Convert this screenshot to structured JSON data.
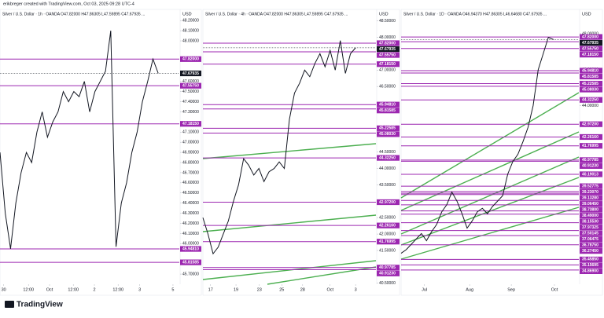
{
  "header": "erikbreger created with TradingView.com, Oct 03, 2025 09:28 UTC-4",
  "footer": "TradingView",
  "chart_data": [
    {
      "type": "line",
      "title": "Silver / U.S. Dollar · 1h · OANDA  O47.82000  H47.86305  L47.59895  C47.67935 ...",
      "currency": "USD",
      "values": [
        46.9,
        46.3,
        45.95,
        46.4,
        46.7,
        46.9,
        46.8,
        47.1,
        47.3,
        47.05,
        47.2,
        47.3,
        47.5,
        47.4,
        47.5,
        47.45,
        47.6,
        47.3,
        47.5,
        47.6,
        47.7,
        48.1,
        45.97,
        46.4,
        46.6,
        46.9,
        47.1,
        47.4,
        47.6,
        47.82,
        47.68
      ],
      "xlim": [
        0,
        34
      ],
      "xticks": [
        {
          "value": 0.7,
          "label": "30"
        },
        {
          "value": 5.4,
          "label": "12:00"
        },
        {
          "value": 9.4,
          "label": "Oct"
        },
        {
          "value": 13.9,
          "label": "12:00"
        },
        {
          "value": 17.9,
          "label": "2"
        },
        {
          "value": 22.4,
          "label": "12:00"
        },
        {
          "value": 26.5,
          "label": "3"
        },
        {
          "value": 32.8,
          "label": "5"
        }
      ],
      "ylim": [
        45.6,
        48.31
      ],
      "yticks": [
        {
          "value": 48.2,
          "label": "48.20000"
        },
        {
          "value": 48.1,
          "label": "48.10000"
        },
        {
          "value": 48.0,
          "label": "48.00000"
        },
        {
          "value": 47.6,
          "label": "47.60000"
        },
        {
          "value": 47.5,
          "label": "47.50000"
        },
        {
          "value": 47.4,
          "label": "47.40000"
        },
        {
          "value": 47.3,
          "label": "47.30000"
        },
        {
          "value": 47.1,
          "label": "47.10000"
        },
        {
          "value": 47.0,
          "label": "47.00000"
        },
        {
          "value": 46.9,
          "label": "46.90000"
        },
        {
          "value": 46.8,
          "label": "46.80000"
        },
        {
          "value": 46.7,
          "label": "46.70000"
        },
        {
          "value": 46.6,
          "label": "46.60000"
        },
        {
          "value": 46.5,
          "label": "46.50000"
        },
        {
          "value": 46.4,
          "label": "46.40000"
        },
        {
          "value": 46.3,
          "label": "46.30000"
        },
        {
          "value": 46.2,
          "label": "46.20000"
        },
        {
          "value": 46.1,
          "label": "46.10000"
        },
        {
          "value": 46.0,
          "label": "46.00000"
        },
        {
          "value": 45.8,
          "label": "45.80000"
        },
        {
          "value": 45.7,
          "label": "45.70000"
        }
      ],
      "levels": [
        {
          "value": 47.82,
          "label": "47.82000"
        },
        {
          "value": 47.5575,
          "label": "47.55750"
        },
        {
          "value": 47.1815,
          "label": "47.18150"
        },
        {
          "value": 45.9481,
          "label": "45.94810"
        },
        {
          "value": 45.81585,
          "label": "45.81585"
        }
      ],
      "current": {
        "value": 47.67935,
        "label": "47.67935"
      },
      "level_color": "#9c27b0",
      "line_color": "#131722"
    },
    {
      "type": "line",
      "title": "Silver / U.S. Dollar · 4h · OANDA  O47.82000  H47.86305  L47.59895  C47.67935 ...",
      "currency": "USD",
      "values": [
        42.5,
        42.0,
        41.4,
        41.6,
        42.0,
        42.4,
        43.0,
        43.5,
        44.3,
        44.1,
        43.8,
        44.0,
        43.6,
        43.9,
        44.0,
        44.2,
        44.0,
        45.5,
        46.3,
        46.6,
        47.0,
        46.8,
        47.2,
        47.5,
        47.1,
        47.6,
        47.0,
        47.9,
        46.9,
        47.5,
        47.68
      ],
      "xlim": [
        0,
        34
      ],
      "xticks": [
        {
          "value": 1.5,
          "label": "17"
        },
        {
          "value": 6.5,
          "label": "19"
        },
        {
          "value": 11.1,
          "label": "23"
        },
        {
          "value": 15.5,
          "label": "25"
        },
        {
          "value": 19.6,
          "label": "28"
        },
        {
          "value": 25,
          "label": "Oct"
        },
        {
          "value": 30,
          "label": "3"
        }
      ],
      "ylim": [
        40.47,
        48.85
      ],
      "yticks": [
        {
          "value": 48.5,
          "label": "48.50000"
        },
        {
          "value": 48.0,
          "label": "48.00000"
        },
        {
          "value": 47.0,
          "label": "47.00000"
        },
        {
          "value": 46.5,
          "label": "46.50000"
        },
        {
          "value": 44.5,
          "label": "44.50000"
        },
        {
          "value": 44.0,
          "label": "44.00000"
        },
        {
          "value": 43.5,
          "label": "43.50000"
        },
        {
          "value": 42.5,
          "label": "42.50000"
        },
        {
          "value": 42.0,
          "label": "42.00000"
        },
        {
          "value": 41.5,
          "label": "41.50000"
        },
        {
          "value": 40.5,
          "label": "40.50000"
        }
      ],
      "levels": [
        {
          "value": 47.82,
          "label": "47.82000"
        },
        {
          "value": 47.5575,
          "label": "47.55750"
        },
        {
          "value": 47.1815,
          "label": "47.18150"
        },
        {
          "value": 45.9481,
          "label": "45.94810"
        },
        {
          "value": 45.81585,
          "label": "45.81585"
        },
        {
          "value": 45.22585,
          "label": "45.22585"
        },
        {
          "value": 45.0803,
          "label": "45.08030"
        },
        {
          "value": 44.3225,
          "label": "44.32250"
        },
        {
          "value": 42.972,
          "label": "42.97200"
        },
        {
          "value": 42.2616,
          "label": "42.26160"
        },
        {
          "value": 41.76995,
          "label": "41.76995"
        },
        {
          "value": 40.97785,
          "label": "40.97785"
        },
        {
          "value": 40.9123,
          "label": "40.91230"
        }
      ],
      "current": {
        "value": 47.67935,
        "label": "47.67935"
      },
      "level_color": "#9c27b0",
      "line_color": "#131722"
    },
    {
      "type": "line",
      "title": "Silver / U.S. Dollar · 1D · OANDA  O46.94370  H47.86305  L46.64680  C47.67935 ...",
      "currency": "USD",
      "values": [
        35.8,
        36.0,
        36.3,
        36.6,
        36.9,
        36.5,
        37.0,
        37.4,
        38.1,
        38.5,
        39.2,
        38.7,
        38.0,
        37.2,
        37.6,
        38.1,
        38.3,
        38.0,
        38.4,
        38.7,
        39.0,
        40.2,
        40.9,
        41.3,
        42.0,
        42.8,
        44.0,
        46.0,
        46.9,
        47.8,
        47.68
      ],
      "xlim": [
        0,
        35
      ],
      "xticks": [
        {
          "value": 4.6,
          "label": "Jul"
        },
        {
          "value": 13.5,
          "label": "Aug"
        },
        {
          "value": 21.7,
          "label": "Sep"
        },
        {
          "value": 30.2,
          "label": "Oct"
        }
      ],
      "ylim": [
        34.08,
        49.35
      ],
      "yticks": [
        {
          "value": 48.0,
          "label": "48.00000"
        },
        {
          "value": 46.0,
          "label": "46.00000"
        },
        {
          "value": 44.0,
          "label": "44.00000"
        }
      ],
      "levels": [
        {
          "value": 47.82,
          "label": "47.82000"
        },
        {
          "value": 47.5575,
          "label": "47.55750"
        },
        {
          "value": 47.1815,
          "label": "47.18150"
        },
        {
          "value": 45.9481,
          "label": "45.94810"
        },
        {
          "value": 45.81585,
          "label": "45.81585"
        },
        {
          "value": 45.22585,
          "label": "45.22585"
        },
        {
          "value": 45.0803,
          "label": "45.08030"
        },
        {
          "value": 44.3225,
          "label": "44.32250"
        },
        {
          "value": 42.972,
          "label": "42.97200"
        },
        {
          "value": 42.2616,
          "label": "42.26160"
        },
        {
          "value": 41.76995,
          "label": "41.76995"
        },
        {
          "value": 40.97785,
          "label": "40.97785"
        },
        {
          "value": 40.9123,
          "label": "40.91230"
        },
        {
          "value": 40.19013,
          "label": "40.19013"
        },
        {
          "value": 39.52775,
          "label": "39.52775"
        },
        {
          "value": 39.2307,
          "label": "39.23070"
        },
        {
          "value": 39.1328,
          "label": "39.13280"
        },
        {
          "value": 39.0645,
          "label": "39.06450"
        },
        {
          "value": 38.738,
          "label": "38.73800"
        },
        {
          "value": 38.49,
          "label": "38.49000"
        },
        {
          "value": 38.1553,
          "label": "38.15530"
        },
        {
          "value": 37.97325,
          "label": "37.97325"
        },
        {
          "value": 37.50145,
          "label": "37.50145"
        },
        {
          "value": 37.06475,
          "label": "37.06475"
        },
        {
          "value": 36.7875,
          "label": "36.78750"
        },
        {
          "value": 36.2745,
          "label": "36.27450"
        },
        {
          "value": 35.15695,
          "label": "35.15695"
        },
        {
          "value": 35.4585,
          "label": "35.45850"
        },
        {
          "value": 34.869,
          "label": "34.86900"
        }
      ],
      "current": {
        "value": 47.67935,
        "label": "47.67935"
      },
      "level_color": "#9c27b0",
      "line_color": "#131722"
    }
  ]
}
